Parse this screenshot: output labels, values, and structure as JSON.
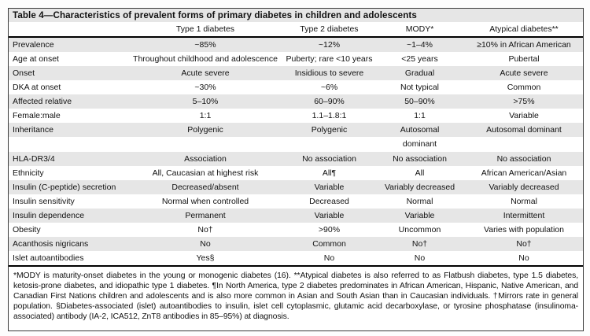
{
  "table": {
    "title": "Table 4—Characteristics of prevalent forms of primary diabetes in children and adolescents",
    "columns": [
      "",
      "Type 1 diabetes",
      "Type 2 diabetes",
      "MODY*",
      "Atypical diabetes**"
    ],
    "rows": [
      {
        "label": "Prevalence",
        "values": [
          "~85%",
          "~12%",
          "~1–4%",
          "≥10% in African American"
        ]
      },
      {
        "label": "Age at onset",
        "values": [
          "Throughout childhood and adolescence",
          "Puberty; rare <10 years",
          "<25 years",
          "Pubertal"
        ]
      },
      {
        "label": "Onset",
        "values": [
          "Acute severe",
          "Insidious to severe",
          "Gradual",
          "Acute severe"
        ]
      },
      {
        "label": "DKA at onset",
        "values": [
          "~30%",
          "~6%",
          "Not typical",
          "Common"
        ]
      },
      {
        "label": "Affected relative",
        "values": [
          "5–10%",
          "60–90%",
          "50–90%",
          ">75%"
        ]
      },
      {
        "label": "Female:male",
        "values": [
          "1:1",
          "1.1–1.8:1",
          "1:1",
          "Variable"
        ]
      },
      {
        "label": "Inheritance",
        "values": [
          "Polygenic",
          "Polygenic",
          "Autosomal dominant",
          "Autosomal dominant"
        ]
      },
      {
        "label": "HLA-DR3/4",
        "values": [
          "Association",
          "No association",
          "No association",
          "No association"
        ]
      },
      {
        "label": "Ethnicity",
        "values": [
          "All, Caucasian at highest risk",
          "All¶",
          "All",
          "African American/Asian"
        ]
      },
      {
        "label": "Insulin (C-peptide) secretion",
        "values": [
          "Decreased/absent",
          "Variable",
          "Variably decreased",
          "Variably decreased"
        ]
      },
      {
        "label": "Insulin sensitivity",
        "values": [
          "Normal when controlled",
          "Decreased",
          "Normal",
          "Normal"
        ]
      },
      {
        "label": "Insulin dependence",
        "values": [
          "Permanent",
          "Variable",
          "Variable",
          "Intermittent"
        ]
      },
      {
        "label": "Obesity",
        "values": [
          "No†",
          ">90%",
          "Uncommon",
          "Varies with population"
        ]
      },
      {
        "label": "Acanthosis nigricans",
        "values": [
          "No",
          "Common",
          "No†",
          "No†"
        ]
      },
      {
        "label": "Islet autoantibodies",
        "values": [
          "Yes§",
          "No",
          "No",
          "No"
        ]
      }
    ],
    "footnote": "*MODY is maturity-onset diabetes in the young or monogenic diabetes (16). **Atypical diabetes is also referred to as Flatbush diabetes, type 1.5 diabetes, ketosis-prone diabetes, and idiopathic type 1 diabetes. ¶In North America, type 2 diabetes predominates in African American, Hispanic, Native American, and Canadian First Nations children and adolescents and is also more common in Asian and South Asian than in Caucasian individuals. †Mirrors rate in general population. §Diabetes-associated (islet) autoantibodies to insulin, islet cell cytoplasmic, glutamic acid decarboxylase, or tyrosine phosphatase (insulinoma-associated) antibody (IA-2, ICA512, ZnT8 antibodies in 85–95%) at diagnosis."
  }
}
